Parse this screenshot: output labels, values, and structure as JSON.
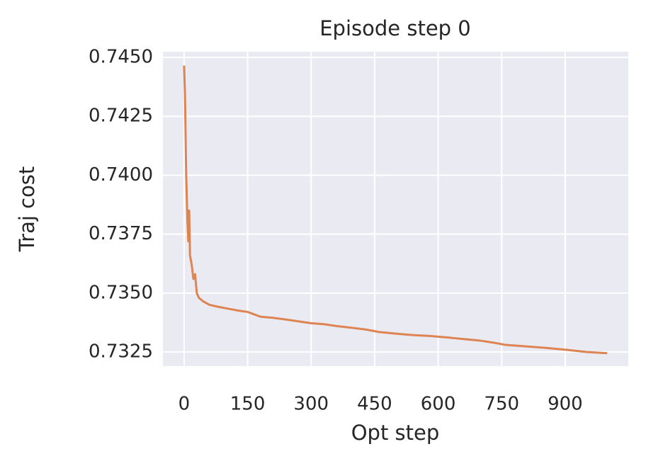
{
  "chart_data": {
    "type": "line",
    "title": "Episode step 0",
    "x_label": "Opt step",
    "y_label": "Traj cost",
    "x": [
      0,
      2,
      5,
      8,
      10,
      12,
      14,
      18,
      22,
      26,
      30,
      35,
      45,
      60,
      80,
      100,
      130,
      150,
      180,
      210,
      240,
      270,
      300,
      330,
      360,
      400,
      430,
      460,
      500,
      540,
      580,
      620,
      660,
      700,
      730,
      760,
      800,
      850,
      900,
      950,
      999
    ],
    "series": [
      {
        "name": "Traj cost",
        "color": "#dd8452",
        "values": [
          0.74465,
          0.7435,
          0.74,
          0.738,
          0.7372,
          0.7385,
          0.7366,
          0.7362,
          0.7356,
          0.7358,
          0.735,
          0.7348,
          0.73465,
          0.7345,
          0.73442,
          0.73435,
          0.73425,
          0.7342,
          0.734,
          0.73395,
          0.73388,
          0.7338,
          0.73372,
          0.73368,
          0.7336,
          0.73352,
          0.73345,
          0.73335,
          0.73328,
          0.73322,
          0.73318,
          0.73312,
          0.73305,
          0.73298,
          0.7329,
          0.7328,
          0.73275,
          0.73268,
          0.7326,
          0.7325,
          0.73245
        ]
      }
    ],
    "xlim": [
      -50,
      1049
    ],
    "ylim": [
      0.7319,
      0.74524
    ],
    "xticks": [
      0,
      150,
      300,
      450,
      600,
      750,
      900
    ],
    "yticks": [
      0.7325,
      {
        "value": 0.735,
        "label": "0.7350"
      },
      0.7375,
      {
        "value": 0.74,
        "label": "0.7400"
      },
      0.7425,
      {
        "value": 0.745,
        "label": "0.7450"
      }
    ],
    "grid": true
  }
}
